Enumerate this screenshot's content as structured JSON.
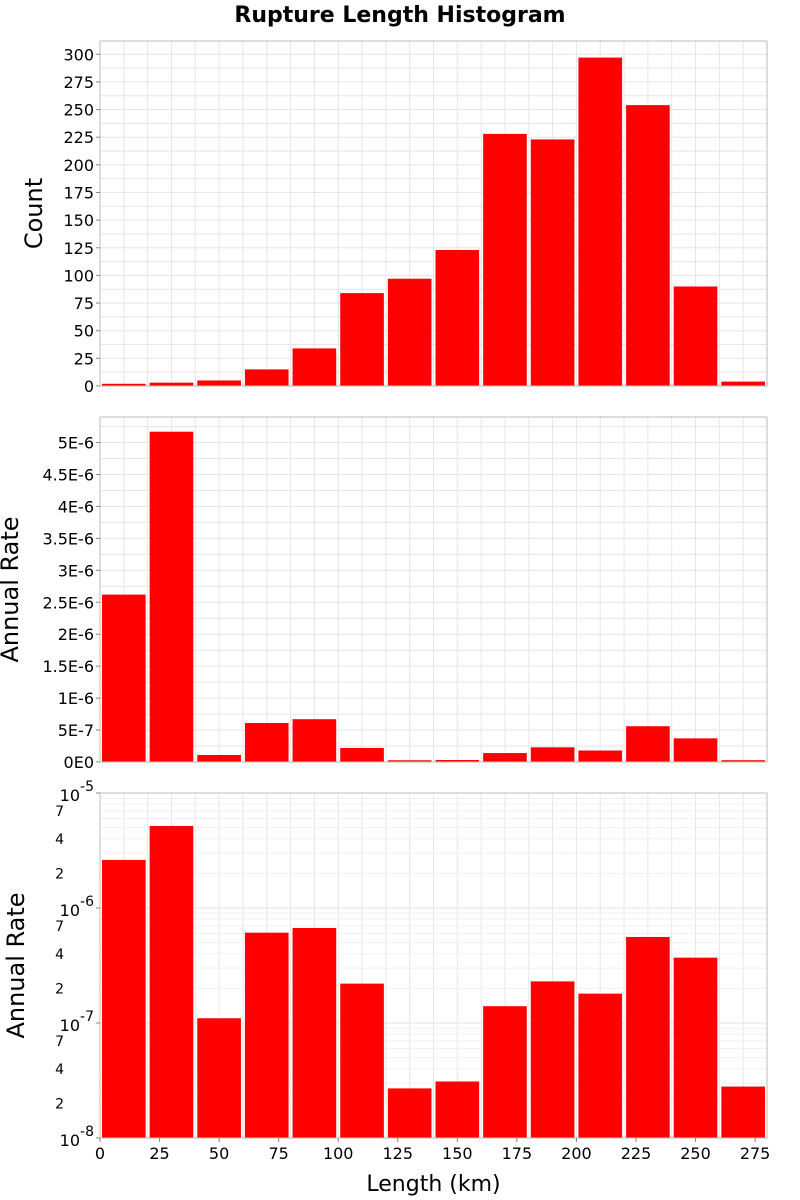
{
  "title": "Rupture Length Histogram",
  "chart_data": [
    {
      "type": "bar",
      "panel": "count",
      "title": "Rupture Length Histogram",
      "xlabel": "",
      "ylabel": "Count",
      "bin_width": 20,
      "x": [
        10,
        30,
        50,
        70,
        90,
        110,
        130,
        150,
        170,
        190,
        210,
        230,
        250,
        270
      ],
      "values": [
        2,
        3,
        5,
        15,
        34,
        84,
        97,
        123,
        228,
        223,
        297,
        254,
        90,
        4
      ],
      "xlim": [
        0,
        280
      ],
      "ylim": [
        0,
        312
      ],
      "yticks": [
        0,
        25,
        50,
        75,
        100,
        125,
        150,
        175,
        200,
        225,
        250,
        275,
        300
      ],
      "ytick_labels": [
        "0",
        "25",
        "50",
        "75",
        "100",
        "125",
        "150",
        "175",
        "200",
        "225",
        "250",
        "275",
        "300"
      ],
      "color": "#ff0000",
      "grid": true
    },
    {
      "type": "bar",
      "panel": "rate-linear",
      "xlabel": "",
      "ylabel": "Annual Rate",
      "bin_width": 20,
      "x": [
        10,
        30,
        50,
        70,
        90,
        110,
        130,
        150,
        170,
        190,
        210,
        230,
        250,
        270
      ],
      "values": [
        2.62e-06,
        5.17e-06,
        1.1e-07,
        6.1e-07,
        6.7e-07,
        2.2e-07,
        2.7e-08,
        3.1e-08,
        1.4e-07,
        2.3e-07,
        1.8e-07,
        5.6e-07,
        3.7e-07,
        2.8e-08
      ],
      "xlim": [
        0,
        280
      ],
      "ylim": [
        0,
        5.4e-06
      ],
      "yticks": [
        0,
        5e-07,
        1e-06,
        1.5e-06,
        2e-06,
        2.5e-06,
        3e-06,
        3.5e-06,
        4e-06,
        4.5e-06,
        5e-06
      ],
      "ytick_labels": [
        "0E0",
        "5E-7",
        "1E-6",
        "1.5E-6",
        "2E-6",
        "2.5E-6",
        "3E-6",
        "3.5E-6",
        "4E-6",
        "4.5E-6",
        "5E-6"
      ],
      "color": "#ff0000",
      "grid": true
    },
    {
      "type": "bar",
      "panel": "rate-log",
      "xlabel": "Length (km)",
      "ylabel": "Annual Rate",
      "yscale": "log",
      "bin_width": 20,
      "x": [
        10,
        30,
        50,
        70,
        90,
        110,
        130,
        150,
        170,
        190,
        210,
        230,
        250,
        270
      ],
      "values": [
        2.62e-06,
        5.17e-06,
        1.1e-07,
        6.1e-07,
        6.7e-07,
        2.2e-07,
        2.7e-08,
        3.1e-08,
        1.4e-07,
        2.3e-07,
        1.8e-07,
        5.6e-07,
        3.7e-07,
        2.8e-08
      ],
      "xlim": [
        0,
        280
      ],
      "ylim": [
        1e-08,
        1e-05
      ],
      "xticks": [
        0,
        25,
        50,
        75,
        100,
        125,
        150,
        175,
        200,
        225,
        250,
        275
      ],
      "xtick_labels": [
        "0",
        "25",
        "50",
        "75",
        "100",
        "125",
        "150",
        "175",
        "200",
        "225",
        "250",
        "275"
      ],
      "major_ticks": [
        {
          "value": 1e-05,
          "base": "10",
          "exp": "-5"
        },
        {
          "value": 1e-06,
          "base": "10",
          "exp": "-6"
        },
        {
          "value": 1e-07,
          "base": "10",
          "exp": "-7"
        },
        {
          "value": 1e-08,
          "base": "10",
          "exp": "-8"
        }
      ],
      "minor_ticks": [
        {
          "value": 7e-06,
          "label": "7"
        },
        {
          "value": 4e-06,
          "label": "4"
        },
        {
          "value": 2e-06,
          "label": "2"
        },
        {
          "value": 7e-07,
          "label": "7"
        },
        {
          "value": 4e-07,
          "label": "4"
        },
        {
          "value": 2e-07,
          "label": "2"
        },
        {
          "value": 7e-08,
          "label": "7"
        },
        {
          "value": 4e-08,
          "label": "4"
        },
        {
          "value": 2e-08,
          "label": "2"
        }
      ],
      "color": "#ff0000",
      "grid": true
    }
  ]
}
